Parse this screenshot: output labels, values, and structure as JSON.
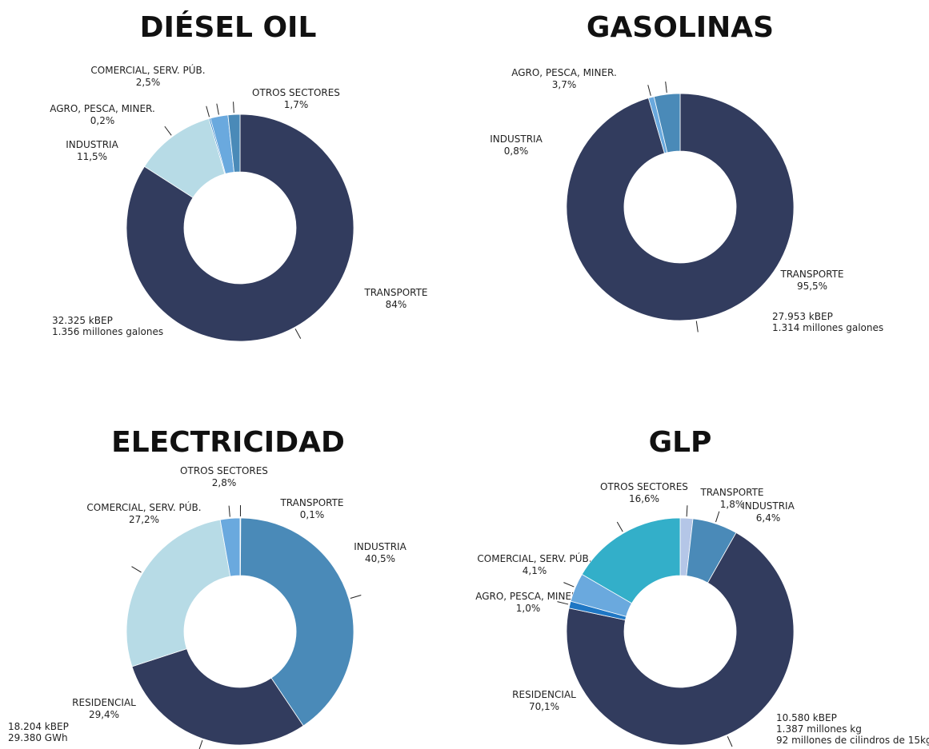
{
  "chart_data": [
    {
      "type": "donut",
      "title": "DIÉSEL OIL",
      "categories": [
        "TRANSPORTE",
        "INDUSTRIA",
        "AGRO, PESCA, MINER.",
        "COMERCIAL, SERV. PÚB.",
        "OTROS SECTORES"
      ],
      "values": [
        84,
        11.5,
        0.2,
        2.5,
        1.7
      ],
      "value_labels": [
        "84%",
        "11,5%",
        "0,2%",
        "2,5%",
        "1,7%"
      ],
      "colors": [
        "#323c5e",
        "#b7dbe6",
        "#1f77c4",
        "#6aa9de",
        "#4a8ab8"
      ],
      "notes": [
        "32.325 kBEP",
        "1.356 millones  galones"
      ]
    },
    {
      "type": "donut",
      "title": "GASOLINAS",
      "categories": [
        "TRANSPORTE",
        "INDUSTRIA",
        "AGRO, PESCA, MINER."
      ],
      "values": [
        95.5,
        0.8,
        3.7
      ],
      "value_labels": [
        "95,5%",
        "0,8%",
        "3,7%"
      ],
      "colors": [
        "#323c5e",
        "#6aa9de",
        "#4a8ab8"
      ],
      "notes": [
        "27.953 kBEP",
        "1.314 millones galones"
      ]
    },
    {
      "type": "donut",
      "title": "ELECTRICIDAD",
      "categories": [
        "TRANSPORTE",
        "INDUSTRIA",
        "RESIDENCIAL",
        "COMERCIAL, SERV. PÚB.",
        "OTROS SECTORES"
      ],
      "values": [
        0.1,
        40.5,
        29.4,
        27.2,
        2.8
      ],
      "value_labels": [
        "0,1%",
        "40,5%",
        "29,4%",
        "27,2%",
        "2,8%"
      ],
      "colors": [
        "#1f77c4",
        "#4a8ab8",
        "#323c5e",
        "#b7dbe6",
        "#6aa9de"
      ],
      "notes": [
        "18.204 kBEP",
        "29.380 GWh"
      ]
    },
    {
      "type": "donut",
      "title": "GLP",
      "categories": [
        "TRANSPORTE",
        "INDUSTRIA",
        "RESIDENCIAL",
        "AGRO, PESCA, MINER.",
        "COMERCIAL, SERV. PÚB.",
        "OTROS SECTORES"
      ],
      "values": [
        1.8,
        6.4,
        70.1,
        1.0,
        4.1,
        16.6
      ],
      "value_labels": [
        "1,8%",
        "6,4%",
        "70,1%",
        "1,0%",
        "4,1%",
        "16,6%"
      ],
      "colors": [
        "#b4c6e7",
        "#4a8ab8",
        "#323c5e",
        "#1f77c4",
        "#6aa9de",
        "#33afc9"
      ],
      "notes": [
        "10.580 kBEP",
        "1.387 millones kg",
        "92 millones de cilindros de 15kg"
      ]
    }
  ]
}
